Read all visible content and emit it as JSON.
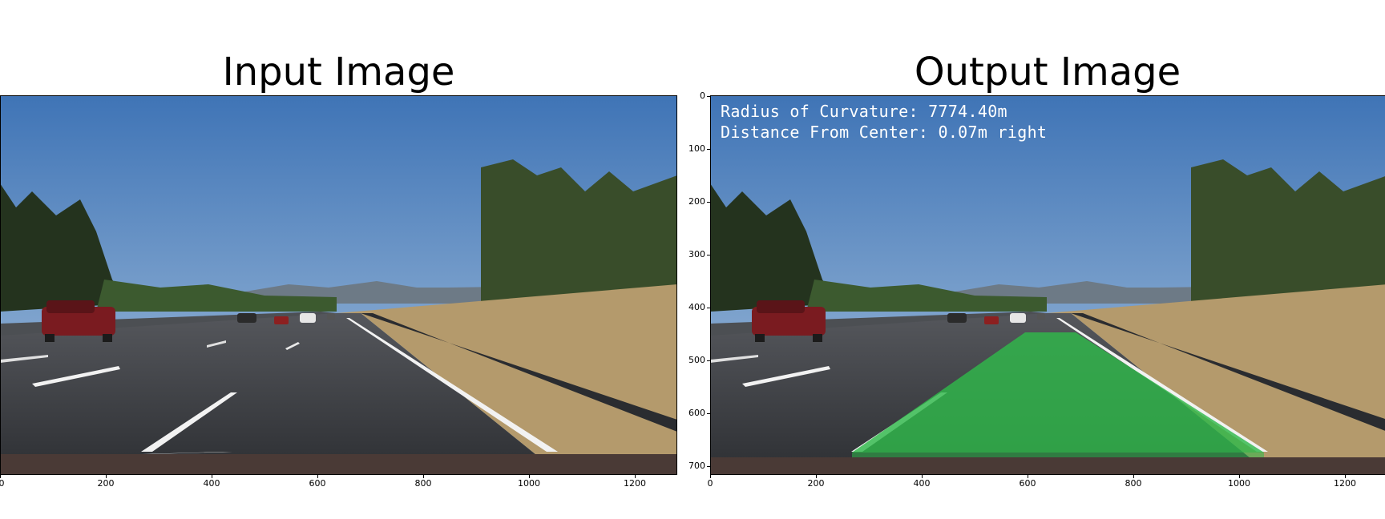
{
  "left_panel": {
    "title": "Input Image",
    "x_ticks": [
      "0",
      "200",
      "400",
      "600",
      "800",
      "1000",
      "1200"
    ]
  },
  "right_panel": {
    "title": "Output Image",
    "x_ticks": [
      "0",
      "200",
      "400",
      "600",
      "800",
      "1000",
      "1200"
    ],
    "y_ticks": [
      "0",
      "100",
      "200",
      "300",
      "400",
      "500",
      "600",
      "700"
    ],
    "overlay": {
      "radius_text": "Radius of Curvature: 7774.40m",
      "distance_text": "Distance From Center: 0.07m right"
    },
    "lane_fill_color": "#2fb84a"
  },
  "colors": {
    "sky": "#5b8fc9",
    "road": "#35373c",
    "grass": "#b49a6c",
    "trees": "#2a3b22",
    "lane_marking": "#f2f2f2"
  }
}
